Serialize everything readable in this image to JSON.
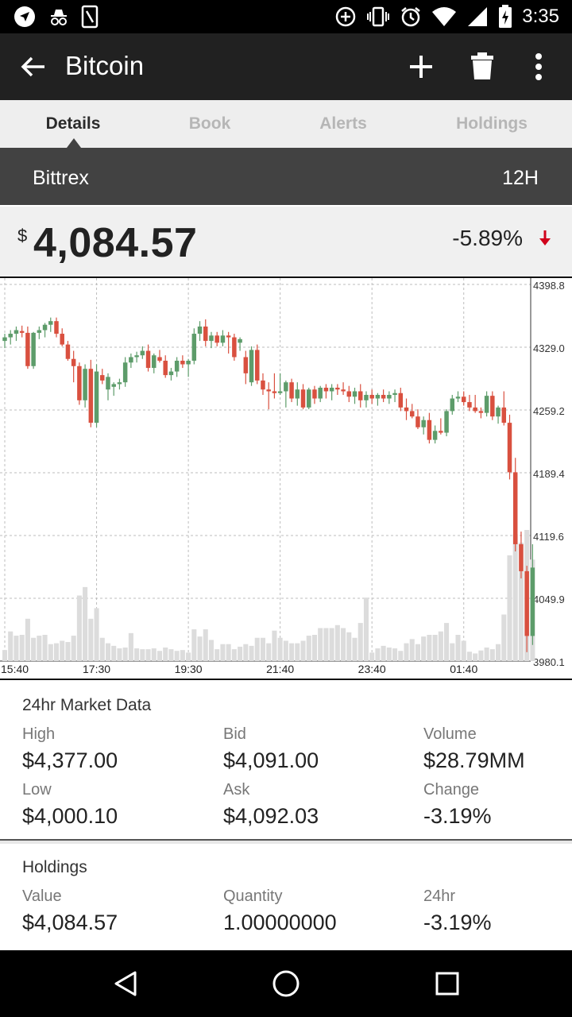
{
  "status_bar": {
    "time": "3:35",
    "icons_left": [
      "navigation-icon",
      "incognito-icon",
      "sim-icon"
    ],
    "icons_right": [
      "data-saver-icon",
      "vibrate-icon",
      "alarm-icon",
      "wifi-icon",
      "signal-icon",
      "battery-charging-icon"
    ]
  },
  "app_bar": {
    "title": "Bitcoin",
    "actions": [
      "add-icon",
      "delete-icon",
      "more-vert-icon"
    ]
  },
  "tabs": [
    {
      "label": "Details",
      "active": true
    },
    {
      "label": "Book",
      "active": false
    },
    {
      "label": "Alerts",
      "active": false
    },
    {
      "label": "Holdings",
      "active": false
    }
  ],
  "exchange": {
    "name": "Bittrex",
    "range": "12H"
  },
  "price": {
    "currency": "$",
    "value": "4,084.57",
    "change": "-5.89%",
    "direction": "down"
  },
  "colors": {
    "up": "#5d9c6a",
    "down": "#d9503f",
    "volume": "#dcdcdc",
    "grid": "#bdbdbd",
    "down_arrow": "#d0021b"
  },
  "chart_data": {
    "type": "candlestick",
    "y_ticks": [
      "4398.8",
      "4329.0",
      "4259.2",
      "4189.4",
      "4119.6",
      "4049.9",
      "3980.1"
    ],
    "ylim": [
      3980.1,
      4398.8
    ],
    "x_ticks": [
      "15:40",
      "17:30",
      "19:30",
      "21:40",
      "23:40",
      "01:40"
    ],
    "x_tick_index": [
      0,
      16,
      32,
      48,
      64,
      80
    ],
    "candles": [
      {
        "o": 4336,
        "h": 4344,
        "l": 4328,
        "c": 4340,
        "v": 26
      },
      {
        "o": 4340,
        "h": 4348,
        "l": 4332,
        "c": 4344,
        "v": 70
      },
      {
        "o": 4344,
        "h": 4352,
        "l": 4336,
        "c": 4348,
        "v": 60
      },
      {
        "o": 4347,
        "h": 4353,
        "l": 4340,
        "c": 4345,
        "v": 62
      },
      {
        "o": 4345,
        "h": 4352,
        "l": 4305,
        "c": 4308,
        "v": 100
      },
      {
        "o": 4308,
        "h": 4346,
        "l": 4305,
        "c": 4345,
        "v": 55
      },
      {
        "o": 4345,
        "h": 4352,
        "l": 4338,
        "c": 4348,
        "v": 60
      },
      {
        "o": 4348,
        "h": 4356,
        "l": 4340,
        "c": 4354,
        "v": 62
      },
      {
        "o": 4354,
        "h": 4362,
        "l": 4346,
        "c": 4358,
        "v": 40
      },
      {
        "o": 4358,
        "h": 4362,
        "l": 4340,
        "c": 4344,
        "v": 42
      },
      {
        "o": 4344,
        "h": 4350,
        "l": 4330,
        "c": 4332,
        "v": 48
      },
      {
        "o": 4332,
        "h": 4336,
        "l": 4314,
        "c": 4316,
        "v": 45
      },
      {
        "o": 4316,
        "h": 4325,
        "l": 4290,
        "c": 4308,
        "v": 60
      },
      {
        "o": 4308,
        "h": 4312,
        "l": 4265,
        "c": 4270,
        "v": 155
      },
      {
        "o": 4270,
        "h": 4310,
        "l": 4262,
        "c": 4305,
        "v": 175
      },
      {
        "o": 4305,
        "h": 4315,
        "l": 4240,
        "c": 4245,
        "v": 100
      },
      {
        "o": 4245,
        "h": 4310,
        "l": 4240,
        "c": 4302,
        "v": 125
      },
      {
        "o": 4298,
        "h": 4305,
        "l": 4288,
        "c": 4292,
        "v": 55
      },
      {
        "o": 4282,
        "h": 4300,
        "l": 4270,
        "c": 4296,
        "v": 42
      },
      {
        "o": 4285,
        "h": 4290,
        "l": 4275,
        "c": 4288,
        "v": 36
      },
      {
        "o": 4288,
        "h": 4294,
        "l": 4282,
        "c": 4290,
        "v": 30
      },
      {
        "o": 4290,
        "h": 4318,
        "l": 4285,
        "c": 4312,
        "v": 32
      },
      {
        "o": 4312,
        "h": 4322,
        "l": 4306,
        "c": 4318,
        "v": 66
      },
      {
        "o": 4318,
        "h": 4324,
        "l": 4312,
        "c": 4320,
        "v": 30
      },
      {
        "o": 4320,
        "h": 4330,
        "l": 4316,
        "c": 4325,
        "v": 28
      },
      {
        "o": 4325,
        "h": 4332,
        "l": 4302,
        "c": 4306,
        "v": 28
      },
      {
        "o": 4306,
        "h": 4322,
        "l": 4300,
        "c": 4320,
        "v": 30
      },
      {
        "o": 4318,
        "h": 4326,
        "l": 4312,
        "c": 4314,
        "v": 24
      },
      {
        "o": 4314,
        "h": 4320,
        "l": 4295,
        "c": 4298,
        "v": 32
      },
      {
        "o": 4298,
        "h": 4306,
        "l": 4292,
        "c": 4302,
        "v": 28
      },
      {
        "o": 4302,
        "h": 4318,
        "l": 4296,
        "c": 4314,
        "v": 24
      },
      {
        "o": 4314,
        "h": 4320,
        "l": 4306,
        "c": 4310,
        "v": 26
      },
      {
        "o": 4310,
        "h": 4316,
        "l": 4296,
        "c": 4314,
        "v": 20
      },
      {
        "o": 4314,
        "h": 4350,
        "l": 4310,
        "c": 4344,
        "v": 75
      },
      {
        "o": 4344,
        "h": 4358,
        "l": 4336,
        "c": 4352,
        "v": 58
      },
      {
        "o": 4352,
        "h": 4360,
        "l": 4330,
        "c": 4336,
        "v": 75
      },
      {
        "o": 4336,
        "h": 4346,
        "l": 4328,
        "c": 4342,
        "v": 50
      },
      {
        "o": 4342,
        "h": 4346,
        "l": 4330,
        "c": 4334,
        "v": 28
      },
      {
        "o": 4334,
        "h": 4348,
        "l": 4330,
        "c": 4342,
        "v": 40
      },
      {
        "o": 4342,
        "h": 4346,
        "l": 4322,
        "c": 4340,
        "v": 40
      },
      {
        "o": 4340,
        "h": 4344,
        "l": 4314,
        "c": 4318,
        "v": 28
      },
      {
        "o": 4334,
        "h": 4340,
        "l": 4325,
        "c": 4338,
        "v": 34
      },
      {
        "o": 4318,
        "h": 4325,
        "l": 4288,
        "c": 4300,
        "v": 40
      },
      {
        "o": 4290,
        "h": 4330,
        "l": 4286,
        "c": 4326,
        "v": 36
      },
      {
        "o": 4326,
        "h": 4332,
        "l": 4288,
        "c": 4292,
        "v": 55
      },
      {
        "o": 4292,
        "h": 4300,
        "l": 4276,
        "c": 4282,
        "v": 55
      },
      {
        "o": 4282,
        "h": 4290,
        "l": 4260,
        "c": 4280,
        "v": 42
      },
      {
        "o": 4280,
        "h": 4300,
        "l": 4272,
        "c": 4278,
        "v": 72
      },
      {
        "o": 4278,
        "h": 4300,
        "l": 4276,
        "c": 4280,
        "v": 55
      },
      {
        "o": 4280,
        "h": 4292,
        "l": 4262,
        "c": 4290,
        "v": 48
      },
      {
        "o": 4290,
        "h": 4294,
        "l": 4268,
        "c": 4272,
        "v": 42
      },
      {
        "o": 4272,
        "h": 4290,
        "l": 4264,
        "c": 4282,
        "v": 42
      },
      {
        "o": 4282,
        "h": 4288,
        "l": 4260,
        "c": 4262,
        "v": 48
      },
      {
        "o": 4262,
        "h": 4284,
        "l": 4260,
        "c": 4282,
        "v": 60
      },
      {
        "o": 4282,
        "h": 4286,
        "l": 4266,
        "c": 4272,
        "v": 62
      },
      {
        "o": 4272,
        "h": 4286,
        "l": 4268,
        "c": 4284,
        "v": 78
      },
      {
        "o": 4284,
        "h": 4288,
        "l": 4272,
        "c": 4280,
        "v": 78
      },
      {
        "o": 4280,
        "h": 4288,
        "l": 4270,
        "c": 4284,
        "v": 78
      },
      {
        "o": 4284,
        "h": 4288,
        "l": 4276,
        "c": 4282,
        "v": 85
      },
      {
        "o": 4282,
        "h": 4290,
        "l": 4276,
        "c": 4280,
        "v": 78
      },
      {
        "o": 4280,
        "h": 4286,
        "l": 4268,
        "c": 4274,
        "v": 68
      },
      {
        "o": 4274,
        "h": 4284,
        "l": 4266,
        "c": 4280,
        "v": 55
      },
      {
        "o": 4280,
        "h": 4288,
        "l": 4262,
        "c": 4270,
        "v": 90
      },
      {
        "o": 4270,
        "h": 4280,
        "l": 4262,
        "c": 4276,
        "v": 150
      },
      {
        "o": 4276,
        "h": 4282,
        "l": 4266,
        "c": 4272,
        "v": 20
      },
      {
        "o": 4272,
        "h": 4278,
        "l": 4264,
        "c": 4276,
        "v": 30
      },
      {
        "o": 4276,
        "h": 4282,
        "l": 4268,
        "c": 4272,
        "v": 36
      },
      {
        "o": 4272,
        "h": 4280,
        "l": 4266,
        "c": 4276,
        "v": 32
      },
      {
        "o": 4276,
        "h": 4282,
        "l": 4268,
        "c": 4278,
        "v": 30
      },
      {
        "o": 4278,
        "h": 4284,
        "l": 4258,
        "c": 4262,
        "v": 24
      },
      {
        "o": 4262,
        "h": 4272,
        "l": 4248,
        "c": 4258,
        "v": 42
      },
      {
        "o": 4258,
        "h": 4266,
        "l": 4250,
        "c": 4252,
        "v": 52
      },
      {
        "o": 4252,
        "h": 4260,
        "l": 4238,
        "c": 4240,
        "v": 40
      },
      {
        "o": 4240,
        "h": 4252,
        "l": 4232,
        "c": 4248,
        "v": 58
      },
      {
        "o": 4248,
        "h": 4256,
        "l": 4222,
        "c": 4226,
        "v": 62
      },
      {
        "o": 4226,
        "h": 4242,
        "l": 4222,
        "c": 4236,
        "v": 62
      },
      {
        "o": 4236,
        "h": 4250,
        "l": 4232,
        "c": 4234,
        "v": 70
      },
      {
        "o": 4234,
        "h": 4260,
        "l": 4230,
        "c": 4258,
        "v": 90
      },
      {
        "o": 4258,
        "h": 4276,
        "l": 4254,
        "c": 4272,
        "v": 42
      },
      {
        "o": 4272,
        "h": 4280,
        "l": 4268,
        "c": 4274,
        "v": 62
      },
      {
        "o": 4274,
        "h": 4280,
        "l": 4264,
        "c": 4268,
        "v": 48
      },
      {
        "o": 4268,
        "h": 4276,
        "l": 4258,
        "c": 4262,
        "v": 22
      },
      {
        "o": 4262,
        "h": 4276,
        "l": 4256,
        "c": 4258,
        "v": 18
      },
      {
        "o": 4258,
        "h": 4262,
        "l": 4250,
        "c": 4256,
        "v": 25
      },
      {
        "o": 4256,
        "h": 4280,
        "l": 4252,
        "c": 4275,
        "v": 32
      },
      {
        "o": 4275,
        "h": 4280,
        "l": 4248,
        "c": 4252,
        "v": 28
      },
      {
        "o": 4252,
        "h": 4264,
        "l": 4244,
        "c": 4262,
        "v": 40
      },
      {
        "o": 4262,
        "h": 4280,
        "l": 4242,
        "c": 4245,
        "v": 110
      },
      {
        "o": 4245,
        "h": 4254,
        "l": 4182,
        "c": 4190,
        "v": 250
      },
      {
        "o": 4190,
        "h": 4206,
        "l": 4102,
        "c": 4110,
        "v": 300
      },
      {
        "o": 4110,
        "h": 4124,
        "l": 4072,
        "c": 4080,
        "v": 280
      },
      {
        "o": 4080,
        "h": 4086,
        "l": 3990,
        "c": 4008,
        "v": 310
      },
      {
        "o": 4008,
        "h": 4110,
        "l": 3998,
        "c": 4084,
        "v": 240
      }
    ]
  },
  "market_data": {
    "title": "24hr Market Data",
    "high_label": "High",
    "high": "$4,377.00",
    "bid_label": "Bid",
    "bid": "$4,091.00",
    "volume_label": "Volume",
    "volume": "$28.79MM",
    "low_label": "Low",
    "low": "$4,000.10",
    "ask_label": "Ask",
    "ask": "$4,092.03",
    "change_label": "Change",
    "change": "-3.19%"
  },
  "holdings": {
    "title": "Holdings",
    "value_label": "Value",
    "value": "$4,084.57",
    "quantity_label": "Quantity",
    "quantity": "1.00000000",
    "h24_label": "24hr",
    "h24": "-3.19%"
  },
  "nav_bar": {
    "buttons": [
      "back-nav-icon",
      "home-nav-icon",
      "recents-nav-icon"
    ]
  }
}
